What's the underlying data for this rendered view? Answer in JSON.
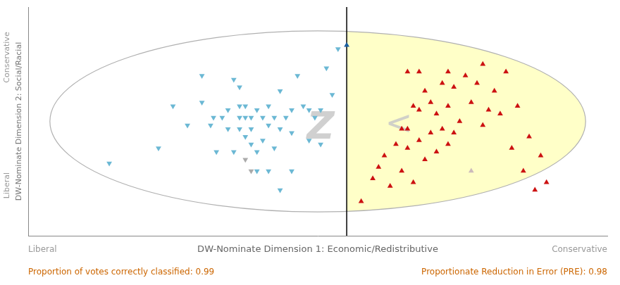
{
  "chart_data": {
    "type": "scatter",
    "xlabel": "DW-Nominate Dimension 1: Economic/Redistributive",
    "ylabel": "DW-Nominate Dimension 2: Social/Racial",
    "x_end_labels": [
      "Liberal",
      "Conservative"
    ],
    "y_end_labels": [
      "Liberal",
      "Conservative"
    ],
    "footer": [
      "Proportion of votes correctly classified: 0.99",
      "Proportionate Reduction in Error (PRE): 0.98"
    ],
    "annotations": [
      {
        "text": "Z",
        "x": 0.01,
        "y": -0.04
      },
      {
        "text": "<",
        "x": 0.28,
        "y": -0.02
      }
    ],
    "xlim": [
      -1.0,
      1.0
    ],
    "ylim": [
      -0.6,
      0.6
    ],
    "tick_labels": false,
    "grid": false,
    "ellipse": {
      "cx": 0.0,
      "cy": 0.0,
      "width": 1.85,
      "height": 0.95
    },
    "divider": {
      "x": 0.1
    },
    "region": {
      "color": "#ffffc8"
    },
    "series": [
      {
        "color": "#6bb8d4",
        "marker": "triangle_down",
        "points": [
          [
            -0.72,
            -0.22
          ],
          [
            -0.55,
            -0.14
          ],
          [
            -0.5,
            0.08
          ],
          [
            -0.45,
            -0.02
          ],
          [
            -0.4,
            0.1
          ],
          [
            -0.4,
            0.24
          ],
          [
            -0.37,
            -0.02
          ],
          [
            -0.36,
            0.02
          ],
          [
            -0.33,
            0.02
          ],
          [
            -0.31,
            -0.04
          ],
          [
            -0.31,
            0.06
          ],
          [
            -0.29,
            0.22
          ],
          [
            -0.27,
            -0.04
          ],
          [
            -0.27,
            0.02
          ],
          [
            -0.27,
            0.08
          ],
          [
            -0.27,
            0.18
          ],
          [
            -0.25,
            -0.08
          ],
          [
            -0.25,
            0.02
          ],
          [
            -0.25,
            0.08
          ],
          [
            -0.23,
            -0.12
          ],
          [
            -0.23,
            -0.04
          ],
          [
            -0.23,
            0.02
          ],
          [
            -0.21,
            -0.16
          ],
          [
            -0.21,
            0.06
          ],
          [
            -0.19,
            -0.1
          ],
          [
            -0.19,
            0.02
          ],
          [
            -0.17,
            -0.02
          ],
          [
            -0.17,
            0.08
          ],
          [
            -0.15,
            -0.14
          ],
          [
            -0.15,
            0.02
          ],
          [
            -0.13,
            -0.04
          ],
          [
            -0.13,
            0.16
          ],
          [
            -0.11,
            0.02
          ],
          [
            -0.09,
            -0.06
          ],
          [
            -0.09,
            0.06
          ],
          [
            -0.07,
            0.24
          ],
          [
            -0.05,
            0.08
          ],
          [
            -0.03,
            -0.1
          ],
          [
            -0.03,
            0.06
          ],
          [
            -0.01,
            0.02
          ],
          [
            0.01,
            -0.12
          ],
          [
            0.01,
            0.06
          ],
          [
            0.03,
            0.28
          ],
          [
            0.05,
            0.14
          ],
          [
            -0.35,
            -0.16
          ],
          [
            -0.29,
            -0.16
          ],
          [
            -0.21,
            -0.26
          ],
          [
            -0.17,
            -0.26
          ],
          [
            -0.13,
            -0.36
          ],
          [
            -0.09,
            -0.26
          ],
          [
            0.07,
            0.38
          ]
        ]
      },
      {
        "color": "#aaaaaa",
        "marker": "triangle_down",
        "points": [
          [
            -0.25,
            -0.2
          ],
          [
            -0.23,
            -0.26
          ]
        ]
      },
      {
        "color": "#1a5fa0",
        "marker": "triangle_up",
        "points": [
          [
            0.1,
            0.4
          ]
        ]
      },
      {
        "color": "#cc1111",
        "marker": "triangle_up",
        "points": [
          [
            0.15,
            -0.42
          ],
          [
            0.19,
            -0.3
          ],
          [
            0.21,
            -0.24
          ],
          [
            0.23,
            -0.18
          ],
          [
            0.25,
            -0.34
          ],
          [
            0.27,
            -0.12
          ],
          [
            0.29,
            -0.26
          ],
          [
            0.29,
            -0.04
          ],
          [
            0.31,
            -0.14
          ],
          [
            0.31,
            -0.04
          ],
          [
            0.33,
            -0.32
          ],
          [
            0.33,
            0.08
          ],
          [
            0.35,
            -0.1
          ],
          [
            0.35,
            0.06
          ],
          [
            0.37,
            -0.2
          ],
          [
            0.37,
            0.16
          ],
          [
            0.39,
            -0.06
          ],
          [
            0.39,
            0.1
          ],
          [
            0.41,
            -0.16
          ],
          [
            0.41,
            0.04
          ],
          [
            0.43,
            -0.04
          ],
          [
            0.43,
            0.2
          ],
          [
            0.45,
            -0.12
          ],
          [
            0.45,
            0.08
          ],
          [
            0.47,
            -0.06
          ],
          [
            0.47,
            0.18
          ],
          [
            0.49,
            0.0
          ],
          [
            0.51,
            0.24
          ],
          [
            0.53,
            0.1
          ],
          [
            0.55,
            0.2
          ],
          [
            0.57,
            -0.02
          ],
          [
            0.57,
            0.3
          ],
          [
            0.59,
            0.06
          ],
          [
            0.61,
            0.16
          ],
          [
            0.63,
            0.04
          ],
          [
            0.65,
            0.26
          ],
          [
            0.67,
            -0.14
          ],
          [
            0.69,
            0.08
          ],
          [
            0.71,
            -0.26
          ],
          [
            0.73,
            -0.08
          ],
          [
            0.75,
            -0.36
          ],
          [
            0.77,
            -0.18
          ],
          [
            0.79,
            -0.32
          ],
          [
            0.31,
            0.26
          ],
          [
            0.35,
            0.26
          ],
          [
            0.45,
            0.26
          ]
        ]
      },
      {
        "color": "#ccbbbb",
        "marker": "triangle_up",
        "points": [
          [
            0.53,
            -0.26
          ]
        ]
      }
    ]
  }
}
